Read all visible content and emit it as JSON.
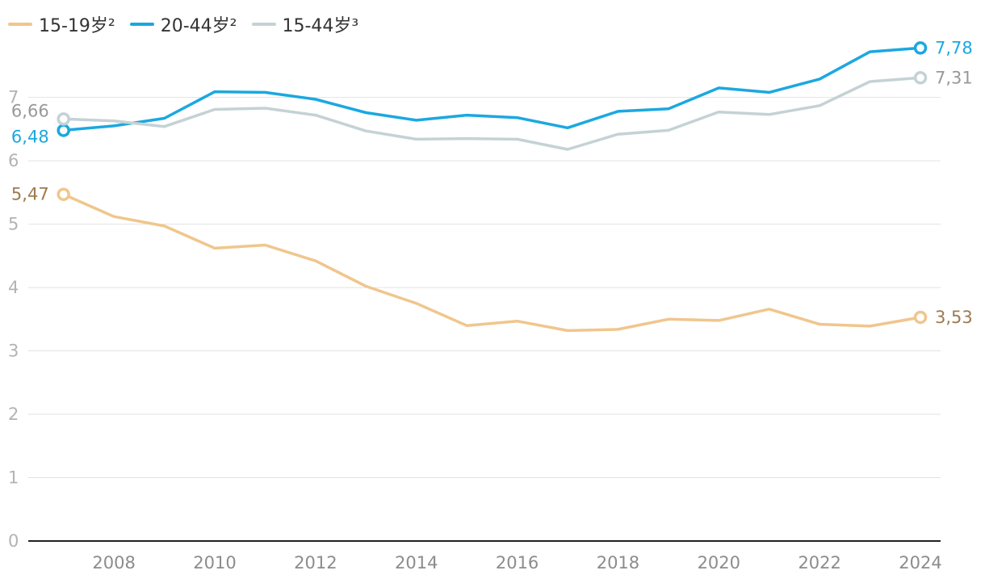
{
  "chart_data": {
    "type": "line",
    "x": [
      2007,
      2008,
      2009,
      2010,
      2011,
      2012,
      2013,
      2014,
      2015,
      2016,
      2017,
      2018,
      2019,
      2020,
      2021,
      2022,
      2023,
      2024
    ],
    "series": [
      {
        "name": "15-19岁²",
        "color": "#f0c68d",
        "label_color": "#9c7a4f",
        "values": [
          5.47,
          5.12,
          4.97,
          4.62,
          4.67,
          4.42,
          4.02,
          3.75,
          3.4,
          3.47,
          3.32,
          3.34,
          3.5,
          3.48,
          3.66,
          3.42,
          3.39,
          3.53
        ],
        "start_label": "5,47",
        "end_label": "3,53"
      },
      {
        "name": "20-44岁²",
        "color": "#1ba8e0",
        "label_color": "#1ba8e0",
        "values": [
          6.48,
          6.55,
          6.67,
          7.09,
          7.08,
          6.97,
          6.76,
          6.64,
          6.72,
          6.68,
          6.52,
          6.78,
          6.82,
          7.15,
          7.08,
          7.29,
          7.72,
          7.78
        ],
        "start_label": "6,48",
        "end_label": "7,78"
      },
      {
        "name": "15-44岁³",
        "color": "#c5d2d5",
        "label_color": "#999999",
        "values": [
          6.66,
          6.63,
          6.54,
          6.81,
          6.83,
          6.72,
          6.47,
          6.34,
          6.35,
          6.34,
          6.18,
          6.42,
          6.48,
          6.77,
          6.73,
          6.87,
          7.25,
          7.31
        ],
        "start_label": "6,66",
        "end_label": "7,31"
      }
    ],
    "yticks": [
      "0",
      "1",
      "2",
      "3",
      "4",
      "5",
      "6",
      "7"
    ],
    "xticks": [
      "2008",
      "2010",
      "2012",
      "2014",
      "2016",
      "2018",
      "2020",
      "2022",
      "2024"
    ],
    "ylim": [
      0,
      7.9
    ],
    "xlim": [
      2006.3,
      2024.4
    ],
    "grid": true,
    "legend_position": "top-left"
  }
}
